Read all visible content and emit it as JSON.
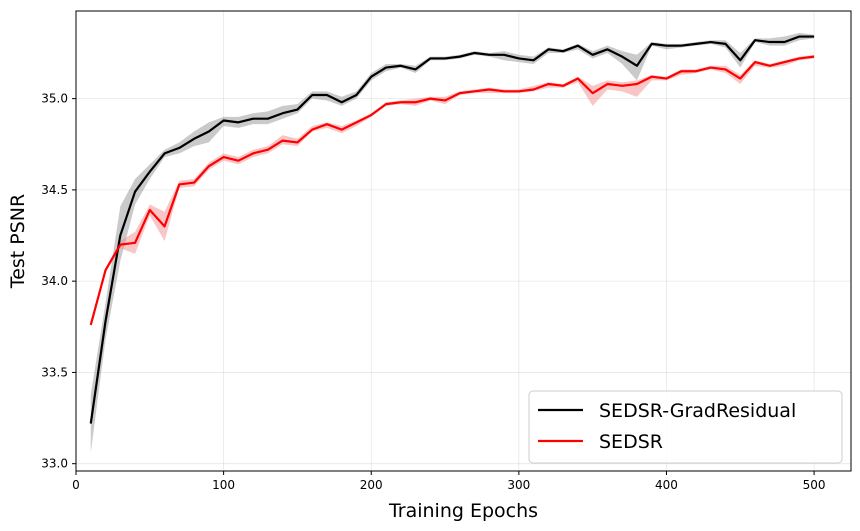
{
  "chart_data": {
    "type": "line",
    "xlabel": "Training Epochs",
    "ylabel": "Test PSNR",
    "xlim": [
      0,
      525
    ],
    "ylim": [
      32.96,
      35.48
    ],
    "xticks": [
      0,
      100,
      200,
      300,
      400,
      500
    ],
    "yticks": [
      33.0,
      33.5,
      34.0,
      34.5,
      35.0
    ],
    "ytick_labels": [
      "33.0",
      "33.5",
      "34.0",
      "34.5",
      "35.0"
    ],
    "grid": true,
    "legend_position": "bottom-right",
    "x": [
      10,
      20,
      30,
      40,
      50,
      60,
      70,
      80,
      90,
      100,
      110,
      120,
      130,
      140,
      150,
      160,
      170,
      180,
      190,
      200,
      210,
      220,
      230,
      240,
      250,
      260,
      270,
      280,
      290,
      300,
      310,
      320,
      330,
      340,
      350,
      360,
      370,
      380,
      390,
      400,
      410,
      420,
      430,
      440,
      450,
      460,
      470,
      480,
      490,
      500
    ],
    "series": [
      {
        "name": "SEDSR-GradResidual",
        "color": "#000000",
        "band_color": "#808080",
        "values": [
          33.22,
          33.78,
          34.25,
          34.49,
          34.6,
          34.7,
          34.73,
          34.78,
          34.82,
          34.88,
          34.87,
          34.89,
          34.89,
          34.92,
          34.94,
          35.02,
          35.02,
          34.98,
          35.02,
          35.12,
          35.17,
          35.18,
          35.16,
          35.22,
          35.22,
          35.23,
          35.25,
          35.24,
          35.24,
          35.22,
          35.21,
          35.27,
          35.26,
          35.29,
          35.24,
          35.27,
          35.23,
          35.18,
          35.3,
          35.29,
          35.29,
          35.3,
          35.31,
          35.3,
          35.21,
          35.32,
          35.31,
          35.31,
          35.34,
          35.34
        ],
        "lower": [
          33.06,
          33.68,
          34.11,
          34.42,
          34.56,
          34.68,
          34.7,
          34.74,
          34.76,
          34.85,
          34.84,
          34.86,
          34.86,
          34.89,
          34.92,
          35.0,
          34.99,
          34.96,
          35.0,
          35.1,
          35.15,
          35.17,
          35.14,
          35.21,
          35.21,
          35.22,
          35.24,
          35.23,
          35.21,
          35.2,
          35.19,
          35.25,
          35.25,
          35.27,
          35.22,
          35.25,
          35.19,
          35.1,
          35.29,
          35.27,
          35.28,
          35.29,
          35.3,
          35.28,
          35.17,
          35.31,
          35.29,
          35.29,
          35.32,
          35.33
        ],
        "upper": [
          33.38,
          33.88,
          34.41,
          34.56,
          34.64,
          34.72,
          34.76,
          34.82,
          34.87,
          34.9,
          34.9,
          34.92,
          34.93,
          34.96,
          34.97,
          35.04,
          35.04,
          35.01,
          35.04,
          35.14,
          35.19,
          35.19,
          35.18,
          35.23,
          35.23,
          35.24,
          35.26,
          35.25,
          35.26,
          35.24,
          35.23,
          35.28,
          35.27,
          35.3,
          35.26,
          35.29,
          35.26,
          35.24,
          35.31,
          35.3,
          35.3,
          35.31,
          35.32,
          35.32,
          35.25,
          35.33,
          35.33,
          35.34,
          35.36,
          35.35
        ]
      },
      {
        "name": "SEDSR",
        "color": "#ff0000",
        "band_color": "#f08080",
        "values": [
          33.76,
          34.06,
          34.2,
          34.21,
          34.39,
          34.3,
          34.53,
          34.54,
          34.63,
          34.68,
          34.66,
          34.7,
          34.72,
          34.77,
          34.76,
          34.83,
          34.86,
          34.83,
          34.87,
          34.91,
          34.97,
          34.98,
          34.98,
          35.0,
          34.99,
          35.03,
          35.04,
          35.05,
          35.04,
          35.04,
          35.05,
          35.08,
          35.07,
          35.11,
          35.03,
          35.08,
          35.07,
          35.08,
          35.12,
          35.11,
          35.15,
          35.15,
          35.17,
          35.16,
          35.11,
          35.2,
          35.18,
          35.2,
          35.22,
          35.23
        ],
        "lower": [
          33.75,
          34.05,
          34.18,
          34.15,
          34.36,
          34.22,
          34.51,
          34.52,
          34.61,
          34.66,
          34.64,
          34.68,
          34.7,
          34.75,
          34.74,
          34.82,
          34.84,
          34.81,
          34.85,
          34.9,
          34.96,
          34.97,
          34.96,
          34.99,
          34.97,
          35.02,
          35.03,
          35.03,
          35.03,
          35.03,
          35.04,
          35.06,
          35.06,
          35.09,
          34.96,
          35.05,
          35.04,
          35.01,
          35.1,
          35.1,
          35.13,
          35.14,
          35.16,
          35.14,
          35.08,
          35.18,
          35.17,
          35.18,
          35.21,
          35.22
        ],
        "upper": [
          33.77,
          34.07,
          34.22,
          34.27,
          34.42,
          34.38,
          34.55,
          34.56,
          34.65,
          34.7,
          34.68,
          34.72,
          34.74,
          34.8,
          34.78,
          34.85,
          34.87,
          34.85,
          34.88,
          34.92,
          34.98,
          34.99,
          35.0,
          35.01,
          35.01,
          35.04,
          35.05,
          35.06,
          35.05,
          35.05,
          35.07,
          35.09,
          35.08,
          35.12,
          35.07,
          35.1,
          35.09,
          35.1,
          35.13,
          35.12,
          35.16,
          35.16,
          35.18,
          35.18,
          35.13,
          35.21,
          35.19,
          35.21,
          35.23,
          35.24
        ]
      }
    ]
  }
}
